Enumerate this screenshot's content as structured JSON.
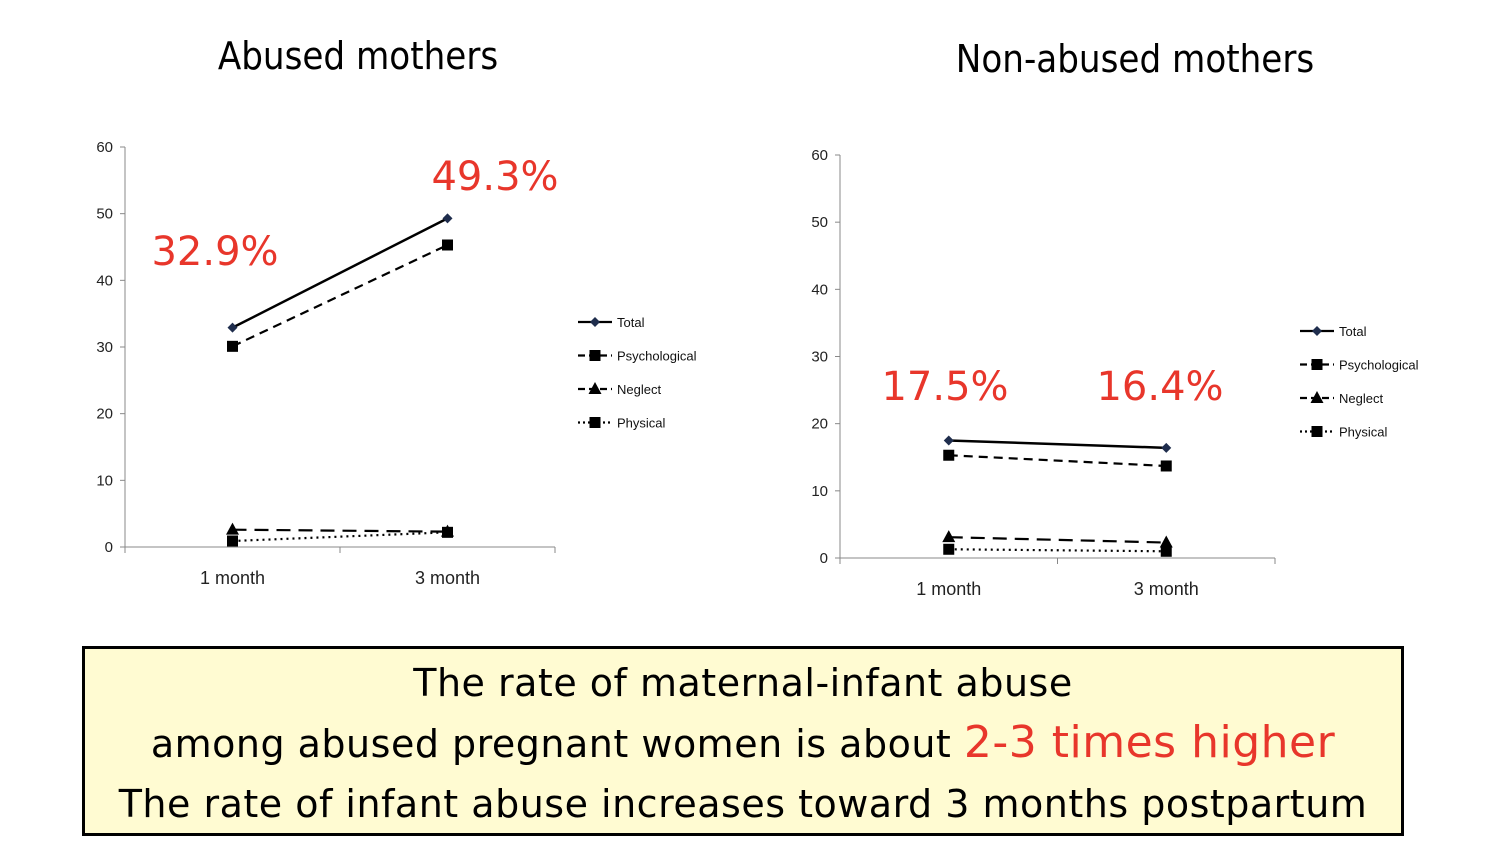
{
  "chart_data": [
    {
      "type": "line",
      "title": "Abused mothers",
      "categories": [
        "1 month",
        "3 month"
      ],
      "ylim": [
        0,
        60
      ],
      "yticks": [
        0,
        10,
        20,
        30,
        40,
        50,
        60
      ],
      "series": [
        {
          "name": "Total",
          "values": [
            32.9,
            49.3
          ],
          "style": "solid",
          "marker": "diamond"
        },
        {
          "name": "Psychological",
          "values": [
            30.1,
            45.3
          ],
          "style": "dashed",
          "marker": "square"
        },
        {
          "name": "Neglect",
          "values": [
            2.6,
            2.3
          ],
          "style": "longdash",
          "marker": "triangle"
        },
        {
          "name": "Physical",
          "values": [
            0.9,
            2.2
          ],
          "style": "dotted",
          "marker": "square"
        }
      ],
      "annotations": [
        "32.9%",
        "49.3%"
      ],
      "legend_position": "right"
    },
    {
      "type": "line",
      "title": "Non-abused mothers",
      "categories": [
        "1 month",
        "3 month"
      ],
      "ylim": [
        0,
        60
      ],
      "yticks": [
        0,
        10,
        20,
        30,
        40,
        50,
        60
      ],
      "series": [
        {
          "name": "Total",
          "values": [
            17.5,
            16.4
          ],
          "style": "solid",
          "marker": "diamond"
        },
        {
          "name": "Psychological",
          "values": [
            15.3,
            13.7
          ],
          "style": "dashed",
          "marker": "square"
        },
        {
          "name": "Neglect",
          "values": [
            3.1,
            2.3
          ],
          "style": "longdash",
          "marker": "triangle"
        },
        {
          "name": "Physical",
          "values": [
            1.3,
            1.0
          ],
          "style": "dotted",
          "marker": "square"
        }
      ],
      "annotations": [
        "17.5%",
        "16.4%"
      ],
      "legend_position": "right"
    }
  ],
  "summary": {
    "line1": "The rate of maternal-infant abuse",
    "line2_prefix": "among abused pregnant women is about",
    "line2_highlight": "2-3 times higher",
    "line3": "The rate of infant abuse increases toward 3 months postpartum"
  },
  "colors": {
    "annotation": "#e8362b",
    "summary_bg": "#fffbd2"
  }
}
